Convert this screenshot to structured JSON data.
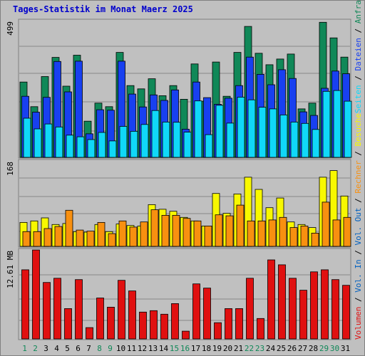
{
  "title": "Tages-Statistik im Monat Maerz 2025",
  "colors": {
    "anfragen": "#108858",
    "dateien": "#1840f0",
    "seiten": "#10d8f8",
    "besuche": "#f8f800",
    "rechner": "#f89010",
    "volumen": "#e01010",
    "weekend_label": "#108858",
    "weekday_label": "#000000",
    "vol_label": "#0060c0",
    "separator": "#000000",
    "grid": "#888888"
  },
  "chart_data": [
    {
      "type": "bar",
      "name": "hits-files-pages",
      "y_tick_label": "499",
      "ylim": [
        0,
        499
      ],
      "categories": [
        "1",
        "2",
        "3",
        "4",
        "5",
        "6",
        "7",
        "8",
        "9",
        "10",
        "11",
        "12",
        "13",
        "14",
        "15",
        "16",
        "17",
        "18",
        "19",
        "20",
        "21",
        "22",
        "23",
        "24",
        "25",
        "26",
        "27",
        "28",
        "29",
        "30",
        "31"
      ],
      "weekend_days": [
        "1",
        "2",
        "8",
        "9",
        "15",
        "16",
        "22",
        "23",
        "29",
        "30"
      ],
      "series": [
        {
          "name": "Anfragen",
          "key": "anfragen",
          "values": [
            275,
            185,
            295,
            365,
            260,
            373,
            132,
            198,
            185,
            383,
            262,
            250,
            287,
            225,
            262,
            212,
            341,
            205,
            348,
            223,
            383,
            478,
            380,
            338,
            359,
            377,
            177,
            198,
            493,
            436,
            366
          ]
        },
        {
          "name": "Dateien",
          "key": "dateien",
          "values": [
            223,
            165,
            219,
            350,
            239,
            351,
            86,
            174,
            172,
            351,
            231,
            184,
            228,
            208,
            246,
            103,
            275,
            218,
            194,
            216,
            262,
            366,
            303,
            265,
            320,
            288,
            166,
            153,
            252,
            315,
            305
          ]
        },
        {
          "name": "Seiten",
          "key": "seiten",
          "values": [
            143,
            104,
            122,
            111,
            81,
            75,
            65,
            91,
            60,
            113,
            95,
            120,
            171,
            129,
            128,
            92,
            206,
            83,
            190,
            125,
            220,
            210,
            183,
            177,
            155,
            129,
            124,
            102,
            241,
            244,
            205
          ]
        }
      ],
      "legend_position": "right"
    },
    {
      "type": "bar",
      "name": "visits-hosts",
      "y_tick_label": "168",
      "ylim": [
        0,
        168
      ],
      "categories": [
        "1",
        "2",
        "3",
        "4",
        "5",
        "6",
        "7",
        "8",
        "9",
        "10",
        "11",
        "12",
        "13",
        "14",
        "15",
        "16",
        "17",
        "18",
        "19",
        "20",
        "21",
        "22",
        "23",
        "24",
        "25",
        "26",
        "27",
        "28",
        "29",
        "30",
        "31"
      ],
      "series": [
        {
          "name": "Besuche",
          "key": "besuche",
          "values": [
            47,
            50,
            56,
            43,
            45,
            29,
            28,
            43,
            29,
            44,
            41,
            40,
            82,
            73,
            69,
            57,
            50,
            40,
            104,
            65,
            103,
            136,
            112,
            76,
            95,
            48,
            43,
            37,
            136,
            149,
            99
          ]
        },
        {
          "name": "Rechner",
          "key": "rechner",
          "values": [
            29,
            29,
            35,
            39,
            71,
            32,
            30,
            47,
            25,
            50,
            38,
            48,
            72,
            61,
            61,
            55,
            50,
            40,
            62,
            60,
            81,
            50,
            50,
            52,
            57,
            37,
            40,
            26,
            87,
            52,
            57
          ]
        }
      ],
      "legend_position": "right"
    },
    {
      "type": "bar",
      "name": "volume",
      "y_tick_label": "12.61 MB",
      "ylim": [
        0,
        12.61
      ],
      "categories": [
        "1",
        "2",
        "3",
        "4",
        "5",
        "6",
        "7",
        "8",
        "9",
        "10",
        "11",
        "12",
        "13",
        "14",
        "15",
        "16",
        "17",
        "18",
        "19",
        "20",
        "21",
        "22",
        "23",
        "24",
        "25",
        "26",
        "27",
        "28",
        "29",
        "30",
        "31"
      ],
      "series": [
        {
          "name": "Volumen",
          "key": "volumen",
          "values": [
            9.8,
            12.6,
            8.0,
            8.6,
            4.3,
            8.4,
            1.6,
            5.8,
            4.5,
            8.3,
            6.8,
            3.8,
            4.0,
            3.5,
            5.0,
            1.1,
            7.8,
            7.2,
            2.3,
            4.3,
            4.3,
            8.6,
            2.9,
            11.2,
            10.5,
            8.6,
            6.9,
            9.5,
            9.8,
            8.4,
            7.6
          ]
        }
      ],
      "legend_position": "right"
    }
  ],
  "legend": {
    "anfragen": "Anfragen",
    "dateien": "Dateien",
    "seiten": "Seiten",
    "besuche": "Besuche",
    "rechner": "Rechner",
    "vol_out": "Vol. Out",
    "vol_in": "Vol. In",
    "volumen": "Volumen",
    "sep": "/"
  }
}
